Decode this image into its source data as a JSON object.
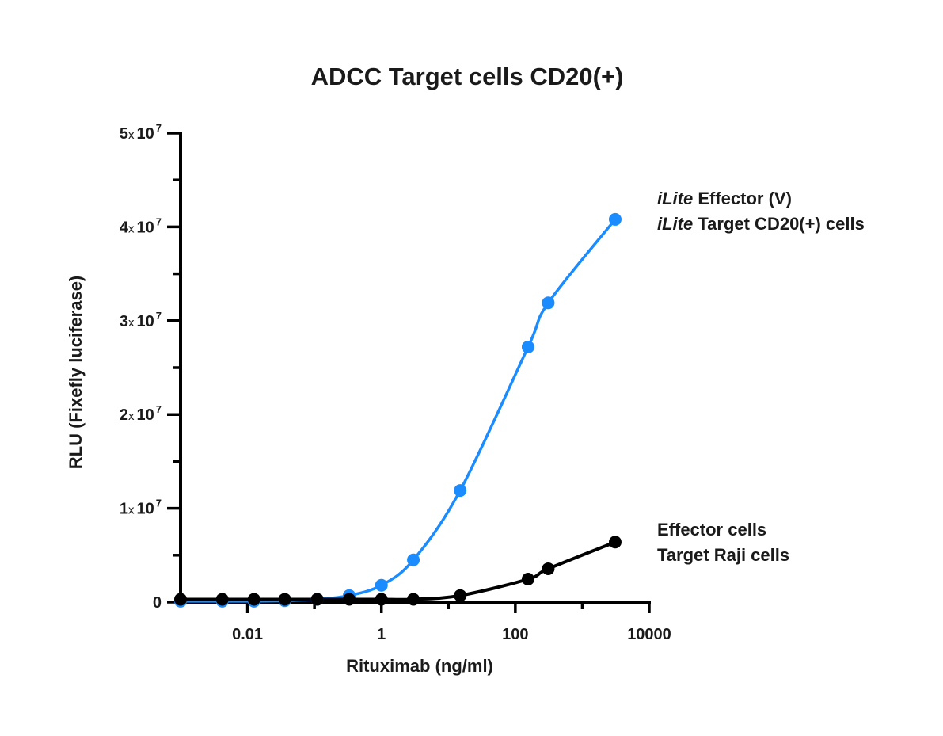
{
  "chart_data": {
    "type": "line",
    "title": "ADCC Target cells CD20(+)",
    "xlabel": "Rituximab (ng/ml)",
    "ylabel": "RLU (Fixefly luciferase)",
    "xscale": "log",
    "xlim": [
      0.001,
      10000
    ],
    "ylim": [
      0,
      50000000
    ],
    "x_ticks": [
      {
        "value": 0.01,
        "label": "0.01"
      },
      {
        "value": 1,
        "label": "1"
      },
      {
        "value": 100,
        "label": "100"
      },
      {
        "value": 10000,
        "label": "10000"
      }
    ],
    "x_minor_ticks": [
      0.1,
      10,
      1000
    ],
    "y_ticks": [
      {
        "value": 0,
        "label": "0"
      },
      {
        "value": 10000000,
        "mant": "1",
        "times": "x",
        "base": "10",
        "exp": "7"
      },
      {
        "value": 20000000,
        "mant": "2",
        "times": "x",
        "base": "10",
        "exp": "7"
      },
      {
        "value": 30000000,
        "mant": "3",
        "times": "x",
        "base": "10",
        "exp": "7"
      },
      {
        "value": 40000000,
        "mant": "4",
        "times": "x",
        "base": "10",
        "exp": "7"
      },
      {
        "value": 50000000,
        "mant": "5",
        "times": "x",
        "base": "10",
        "exp": "7"
      }
    ],
    "y_minor_ticks": [
      5000000,
      15000000,
      25000000,
      35000000,
      45000000
    ],
    "grid": false,
    "legend": "right, labels next to curve ends",
    "series": [
      {
        "name_lines": [
          {
            "italic": "iLite",
            "rest": " Effector (V)"
          },
          {
            "italic": "iLite",
            "rest": " Target CD20(+) cells"
          }
        ],
        "color": "#1a8cff",
        "x": [
          0.001,
          0.0042,
          0.0125,
          0.036,
          0.11,
          0.33,
          1,
          3,
          15,
          155,
          310,
          3100
        ],
        "y": [
          100000,
          100000,
          100000,
          150000,
          300000,
          700000,
          1800000,
          4500000,
          11900000,
          27200000,
          31900000,
          40800000
        ]
      },
      {
        "name_lines": [
          {
            "italic": "",
            "rest": "Effector cells"
          },
          {
            "italic": "",
            "rest": "Target Raji cells"
          }
        ],
        "color": "#000000",
        "x": [
          0.001,
          0.0042,
          0.0125,
          0.036,
          0.11,
          0.33,
          1,
          3,
          15,
          155,
          310,
          3100
        ],
        "y": [
          300000,
          300000,
          300000,
          300000,
          300000,
          300000,
          300000,
          300000,
          700000,
          2450000,
          3550000,
          6400000
        ]
      }
    ]
  }
}
